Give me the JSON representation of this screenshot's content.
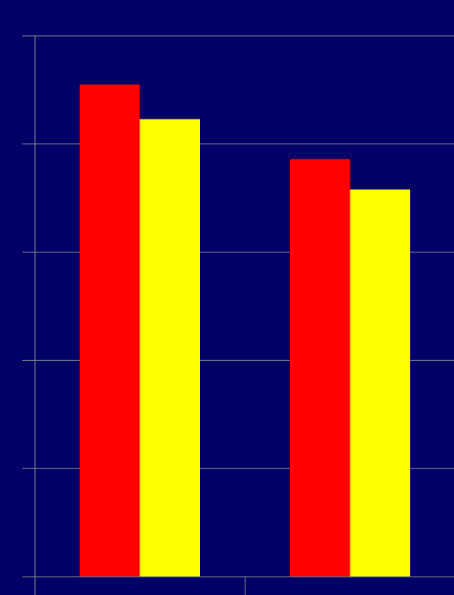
{
  "colors": {
    "background": "#000066",
    "grid": "#8c8c8c",
    "series_1": "#ff0000",
    "series_2": "#ffff00"
  },
  "chart_data": {
    "type": "bar",
    "categories": [
      "",
      ""
    ],
    "series": [
      {
        "values": [
          4.55,
          3.86
        ]
      },
      {
        "values": [
          4.23,
          3.58
        ]
      }
    ],
    "ylim": [
      0,
      5
    ],
    "grid": true,
    "title": "",
    "xlabel": "",
    "ylabel": ""
  }
}
